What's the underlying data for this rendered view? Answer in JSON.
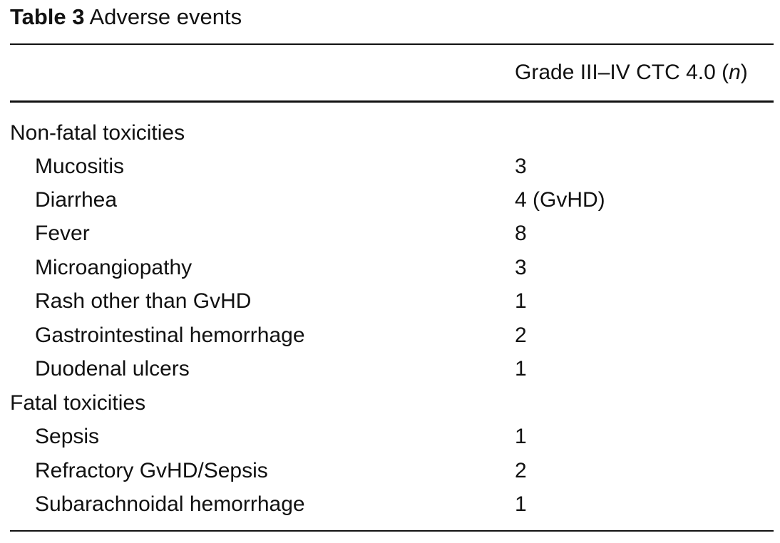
{
  "caption": {
    "label": "Table 3",
    "title": "Adverse events"
  },
  "table": {
    "column_header_main": "Grade III–IV CTC 4.0 (",
    "column_header_italic": "n",
    "column_header_close": ")",
    "sections": [
      {
        "heading": "Non-fatal toxicities",
        "rows": [
          {
            "label": "Mucositis",
            "value": "3"
          },
          {
            "label": "Diarrhea",
            "value": "4 (GvHD)"
          },
          {
            "label": "Fever",
            "value": "8"
          },
          {
            "label": "Microangiopathy",
            "value": "3"
          },
          {
            "label": "Rash other than GvHD",
            "value": "1"
          },
          {
            "label": "Gastrointestinal hemorrhage",
            "value": "2"
          },
          {
            "label": "Duodenal ulcers",
            "value": "1"
          }
        ]
      },
      {
        "heading": "Fatal toxicities",
        "rows": [
          {
            "label": "Sepsis",
            "value": "1"
          },
          {
            "label": "Refractory GvHD/Sepsis",
            "value": "2"
          },
          {
            "label": "Subarachnoidal hemorrhage",
            "value": "1"
          }
        ]
      }
    ]
  }
}
